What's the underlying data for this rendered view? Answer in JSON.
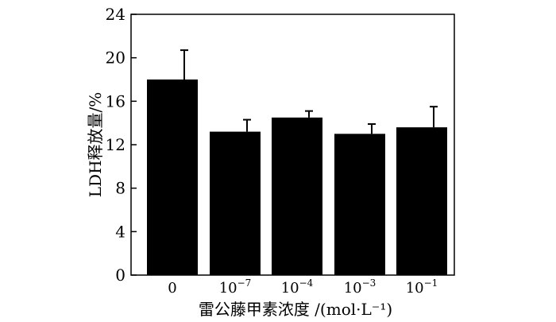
{
  "chart_data": {
    "type": "bar",
    "xlabel": "雷公藤甲素浓度 /(mol·L⁻¹)",
    "ylabel": "LDH释放量/%",
    "ylim": [
      0,
      24
    ],
    "yticks": [
      0,
      4,
      8,
      12,
      16,
      20,
      24
    ],
    "categories": [
      {
        "base": "0",
        "exp": ""
      },
      {
        "base": "10",
        "exp": "−7"
      },
      {
        "base": "10",
        "exp": "−4"
      },
      {
        "base": "10",
        "exp": "−3"
      },
      {
        "base": "10",
        "exp": "−1"
      }
    ],
    "values": [
      18.0,
      13.2,
      14.5,
      13.0,
      13.6
    ],
    "errors": [
      2.7,
      1.1,
      0.6,
      0.9,
      1.9
    ],
    "bar_color": "#000000",
    "grid": false
  }
}
